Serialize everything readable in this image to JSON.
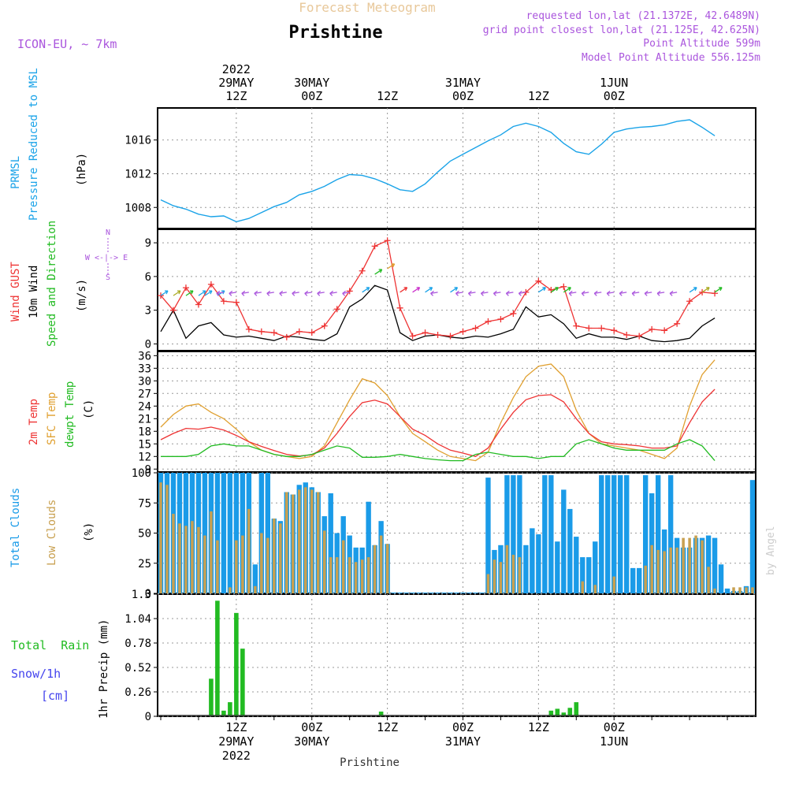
{
  "header": {
    "title_top": "Forecast Meteogram",
    "location": "Prishtine",
    "model": "ICON-EU, ~ 7km",
    "requested": "requested lon,lat (21.1372E, 42.6489N)",
    "grid_point": "grid point closest lon,lat (21.125E, 42.625N)",
    "point_alt": "Point Altitude 599m",
    "model_alt": "Model Point Altitude 556.125m",
    "credit": "by Angel",
    "bottom_location": "Prishtine"
  },
  "colors": {
    "pressure": "#1aa3e8",
    "gust": "#ee3333",
    "wind": "#000000",
    "green": "#22bb22",
    "orange": "#e0a030",
    "purple": "#aa55dd",
    "total_cloud": "#1a9be8",
    "low_cloud": "#c8a050",
    "rain": "#22bb22",
    "snow": "#4444ee"
  },
  "time_axis": {
    "top_labels": [
      {
        "t": 12,
        "lines": [
          "2022",
          "29MAY",
          "12Z"
        ]
      },
      {
        "t": 24,
        "lines": [
          "30MAY",
          "00Z"
        ]
      },
      {
        "t": 36,
        "lines": [
          "12Z"
        ]
      },
      {
        "t": 48,
        "lines": [
          "31MAY",
          "00Z"
        ]
      },
      {
        "t": 60,
        "lines": [
          "12Z"
        ]
      },
      {
        "t": 72,
        "lines": [
          "1JUN",
          "00Z"
        ]
      }
    ],
    "bottom_labels": [
      {
        "t": 12,
        "lines": [
          "12Z",
          "29MAY",
          "2022"
        ]
      },
      {
        "t": 24,
        "lines": [
          "00Z",
          "30MAY"
        ]
      },
      {
        "t": 36,
        "lines": [
          "12Z"
        ]
      },
      {
        "t": 48,
        "lines": [
          "00Z",
          "31MAY"
        ]
      },
      {
        "t": 60,
        "lines": [
          "12Z"
        ]
      },
      {
        "t": 72,
        "lines": [
          "00Z",
          "1JUN"
        ]
      }
    ]
  },
  "panels": {
    "pressure": {
      "label1": "PRMSL",
      "label2": "Pressure Reduced to MSL",
      "unit": "(hPa)",
      "ticks": [
        "1008",
        "1012",
        "1016"
      ]
    },
    "wind": {
      "label_gust": "Wind GUST",
      "label_wind": "10m Wind",
      "label_dir": "Speed and Direction",
      "unit": "(m/s)",
      "ticks": [
        "0",
        "3",
        "6",
        "9"
      ],
      "compass_n": "N",
      "compass_s": "S",
      "compass_row": "W <-|-> E"
    },
    "temp": {
      "label_2m": "2m Temp",
      "label_sfc": "SFC Temp",
      "label_dew": "dewpt Temp",
      "unit": "(C)",
      "ticks": [
        "9",
        "12",
        "15",
        "18",
        "21",
        "24",
        "27",
        "30",
        "33",
        "36"
      ]
    },
    "clouds": {
      "label_total": "Total Clouds",
      "label_low": "Low Clouds",
      "unit": "(%)",
      "ticks": [
        "0",
        "25",
        "50",
        "75",
        "100"
      ]
    },
    "precip": {
      "label_rain": "Total  Rain",
      "label_snow": "Snow/1h",
      "label_cm": "[cm]",
      "unit": "1hr Precip (mm)",
      "ticks": [
        "0",
        "0.26",
        "0.52",
        "0.78",
        "1.04",
        "1.3"
      ]
    }
  },
  "chart_data": [
    {
      "type": "line",
      "title": "PRMSL Pressure Reduced to MSL",
      "ylabel": "hPa",
      "ylim": [
        1005.5,
        1019.8
      ],
      "x": [
        0,
        2,
        4,
        6,
        8,
        10,
        12,
        14,
        16,
        18,
        20,
        22,
        24,
        26,
        28,
        30,
        32,
        34,
        36,
        38,
        40,
        42,
        44,
        46,
        48,
        50,
        52,
        54,
        56,
        58,
        60,
        62,
        64,
        66,
        68,
        70,
        72,
        74,
        76,
        78,
        80,
        82,
        84,
        86,
        88
      ],
      "values": [
        1008.9,
        1008.2,
        1007.8,
        1007.2,
        1006.9,
        1007.0,
        1006.3,
        1006.7,
        1007.4,
        1008.1,
        1008.6,
        1009.5,
        1009.9,
        1010.5,
        1011.3,
        1011.9,
        1011.8,
        1011.4,
        1010.8,
        1010.1,
        1009.9,
        1010.8,
        1012.2,
        1013.5,
        1014.3,
        1015.1,
        1015.9,
        1016.6,
        1017.6,
        1018.0,
        1017.6,
        1016.9,
        1015.6,
        1014.6,
        1014.3,
        1015.5,
        1016.9,
        1017.3,
        1017.5,
        1017.6,
        1017.8,
        1018.2,
        1018.4,
        1017.5,
        1016.5
      ]
    },
    {
      "type": "line",
      "title": "Wind GUST / 10m Wind Speed",
      "ylabel": "m/s",
      "ylim": [
        -0.6,
        10.2
      ],
      "x": [
        0,
        2,
        4,
        6,
        8,
        10,
        12,
        14,
        16,
        18,
        20,
        22,
        24,
        26,
        28,
        30,
        32,
        34,
        36,
        38,
        40,
        42,
        44,
        46,
        48,
        50,
        52,
        54,
        56,
        58,
        60,
        62,
        64,
        66,
        68,
        70,
        72,
        74,
        76,
        78,
        80,
        82,
        84,
        86,
        88
      ],
      "series": [
        {
          "name": "Wind GUST",
          "values": [
            4.3,
            3.0,
            5.0,
            3.5,
            5.3,
            3.8,
            3.7,
            1.3,
            1.1,
            1.0,
            0.6,
            1.1,
            1.0,
            1.6,
            3.1,
            4.7,
            6.5,
            8.7,
            9.2,
            3.2,
            0.7,
            1.0,
            0.8,
            0.7,
            1.1,
            1.4,
            2.0,
            2.2,
            2.7,
            4.6,
            5.6,
            4.8,
            5.1,
            1.6,
            1.4,
            1.4,
            1.2,
            0.8,
            0.7,
            1.3,
            1.2,
            1.8,
            3.8,
            4.6,
            4.5
          ]
        },
        {
          "name": "10m Wind",
          "values": [
            1.1,
            3.0,
            0.5,
            1.6,
            1.9,
            0.8,
            0.6,
            0.7,
            0.5,
            0.3,
            0.7,
            0.6,
            0.4,
            0.3,
            0.9,
            3.3,
            4.0,
            5.2,
            4.8,
            1.0,
            0.3,
            0.7,
            0.8,
            0.6,
            0.5,
            0.7,
            0.6,
            0.9,
            1.3,
            3.3,
            2.4,
            2.6,
            1.8,
            0.5,
            0.9,
            0.6,
            0.6,
            0.4,
            0.7,
            0.3,
            0.2,
            0.3,
            0.5,
            1.6,
            2.3
          ]
        }
      ],
      "arrows": [
        {
          "t": 0,
          "c": "#1aa3e8"
        },
        {
          "t": 2,
          "c": "#aaaa22"
        },
        {
          "t": 4,
          "c": "#22bb22"
        },
        {
          "t": 6,
          "c": "#1aa3e8"
        },
        {
          "t": 7,
          "c": "#1aa3e8"
        },
        {
          "t": 9,
          "c": "#1aa3e8"
        },
        {
          "t": 10,
          "c": "#aa55dd"
        },
        {
          "t": 12,
          "c": "#aa55dd"
        },
        {
          "t": 14,
          "c": "#aa55dd"
        },
        {
          "t": 16,
          "c": "#aa55dd"
        },
        {
          "t": 18,
          "c": "#aa55dd"
        },
        {
          "t": 20,
          "c": "#aa55dd"
        },
        {
          "t": 22,
          "c": "#aa55dd"
        },
        {
          "t": 24,
          "c": "#aa55dd"
        },
        {
          "t": 26,
          "c": "#aa55dd"
        },
        {
          "t": 28,
          "c": "#aa55dd"
        },
        {
          "t": 30,
          "c": "#aa55dd"
        },
        {
          "t": 32,
          "c": "#1aa3e8"
        },
        {
          "t": 34,
          "c": "#22bb22"
        },
        {
          "t": 36,
          "c": "#e0a030"
        },
        {
          "t": 38,
          "c": "#ee3333"
        },
        {
          "t": 40,
          "c": "#cc33cc"
        },
        {
          "t": 42,
          "c": "#1aa3e8"
        },
        {
          "t": 44,
          "c": "#aa55dd"
        },
        {
          "t": 46,
          "c": "#1aa3e8"
        },
        {
          "t": 48,
          "c": "#aa55dd"
        },
        {
          "t": 50,
          "c": "#aa55dd"
        },
        {
          "t": 52,
          "c": "#aa55dd"
        },
        {
          "t": 54,
          "c": "#aa55dd"
        },
        {
          "t": 56,
          "c": "#aa55dd"
        },
        {
          "t": 58,
          "c": "#aa55dd"
        },
        {
          "t": 60,
          "c": "#1aa3e8"
        },
        {
          "t": 62,
          "c": "#22bb22"
        },
        {
          "t": 64,
          "c": "#22bb22"
        },
        {
          "t": 66,
          "c": "#aa55dd"
        },
        {
          "t": 68,
          "c": "#aa55dd"
        },
        {
          "t": 70,
          "c": "#aa55dd"
        },
        {
          "t": 72,
          "c": "#aa55dd"
        },
        {
          "t": 74,
          "c": "#aa55dd"
        },
        {
          "t": 76,
          "c": "#aa55dd"
        },
        {
          "t": 78,
          "c": "#aa55dd"
        },
        {
          "t": 80,
          "c": "#aa55dd"
        },
        {
          "t": 82,
          "c": "#aa55dd"
        },
        {
          "t": 84,
          "c": "#1aa3e8"
        },
        {
          "t": 86,
          "c": "#aaaa22"
        },
        {
          "t": 88,
          "c": "#22bb22"
        }
      ]
    },
    {
      "type": "line",
      "title": "Temperature",
      "ylabel": "C",
      "ylim": [
        8.3,
        37
      ],
      "x": [
        0,
        2,
        4,
        6,
        8,
        10,
        12,
        14,
        16,
        18,
        20,
        22,
        24,
        26,
        28,
        30,
        32,
        34,
        36,
        38,
        40,
        42,
        44,
        46,
        48,
        50,
        52,
        54,
        56,
        58,
        60,
        62,
        64,
        66,
        68,
        70,
        72,
        74,
        76,
        78,
        80,
        82,
        84,
        86,
        88
      ],
      "series": [
        {
          "name": "2m Temp",
          "values": [
            16.0,
            17.5,
            18.7,
            18.5,
            19.0,
            18.3,
            17.0,
            15.5,
            14.4,
            13.4,
            12.5,
            12.1,
            12.4,
            14.0,
            17.5,
            21.5,
            24.8,
            25.4,
            24.5,
            21.5,
            18.5,
            17.0,
            15.0,
            13.5,
            12.8,
            12.0,
            14.0,
            18.5,
            22.5,
            25.5,
            26.5,
            26.7,
            25.0,
            21.0,
            17.5,
            15.5,
            15.0,
            14.8,
            14.5,
            14.0,
            14.0,
            14.5,
            20.0,
            25.0,
            28.0
          ]
        },
        {
          "name": "SFC Temp",
          "values": [
            19.0,
            22.0,
            24.0,
            24.5,
            22.5,
            21.0,
            18.5,
            15.5,
            13.5,
            12.5,
            12.0,
            11.5,
            12.0,
            14.5,
            20.0,
            25.5,
            30.5,
            29.5,
            26.5,
            21.5,
            17.5,
            15.5,
            13.5,
            12.0,
            11.5,
            11.0,
            13.0,
            20.0,
            26.0,
            31.0,
            33.5,
            34.0,
            31.0,
            23.0,
            17.5,
            15.0,
            14.5,
            14.0,
            13.5,
            12.5,
            11.5,
            14.0,
            24.0,
            31.5,
            35.0
          ]
        },
        {
          "name": "dewpt Temp",
          "values": [
            12.0,
            12.0,
            12.0,
            12.5,
            14.5,
            15.0,
            14.5,
            14.5,
            13.5,
            12.5,
            12.0,
            12.0,
            12.5,
            13.5,
            14.5,
            14.0,
            11.8,
            11.8,
            12.0,
            12.5,
            12.0,
            11.5,
            11.2,
            11.0,
            11.0,
            12.5,
            13.0,
            12.5,
            12.0,
            12.0,
            11.5,
            12.0,
            12.0,
            15.0,
            16.0,
            15.0,
            14.0,
            13.5,
            13.5,
            13.5,
            13.5,
            15.0,
            16.0,
            14.5,
            11.0
          ]
        }
      ]
    },
    {
      "type": "bar",
      "title": "Total Clouds / Low Clouds",
      "ylabel": "%",
      "ylim": [
        0,
        100
      ],
      "x_start": 0,
      "x_step": 1,
      "series": [
        {
          "name": "Total Clouds",
          "values": [
            100,
            100,
            100,
            100,
            100,
            100,
            100,
            100,
            100,
            100,
            100,
            100,
            100,
            100,
            100,
            24,
            100,
            100,
            62,
            60,
            84,
            82,
            90,
            92,
            88,
            84,
            64,
            83,
            50,
            64,
            48,
            38,
            38,
            76,
            40,
            60,
            41,
            0,
            0,
            0,
            0,
            0,
            0,
            0,
            0,
            0,
            0,
            0,
            0,
            0,
            0,
            0,
            96,
            36,
            40,
            98,
            98,
            98,
            40,
            54,
            49,
            98,
            98,
            43,
            86,
            70,
            47,
            30,
            30,
            43,
            98,
            98,
            98,
            98,
            98,
            21,
            21,
            98,
            83,
            98,
            53,
            98,
            46,
            38,
            38,
            46,
            46,
            48,
            46,
            24,
            4,
            2,
            2,
            6,
            94
          ]
        },
        {
          "name": "Low Clouds",
          "values": [
            92,
            90,
            66,
            58,
            56,
            60,
            55,
            48,
            68,
            44,
            0,
            5,
            44,
            48,
            70,
            6,
            50,
            46,
            62,
            58,
            84,
            82,
            86,
            88,
            86,
            84,
            52,
            30,
            30,
            44,
            30,
            26,
            28,
            30,
            40,
            48,
            41,
            0,
            0,
            0,
            0,
            0,
            0,
            0,
            0,
            0,
            0,
            0,
            0,
            0,
            0,
            0,
            16,
            28,
            26,
            40,
            32,
            30,
            0,
            0,
            0,
            0,
            0,
            0,
            0,
            0,
            0,
            10,
            0,
            7,
            0,
            0,
            14,
            0,
            0,
            0,
            0,
            23,
            40,
            36,
            35,
            38,
            38,
            46,
            46,
            48,
            44,
            22,
            4,
            0,
            0,
            5,
            5,
            5,
            5
          ]
        }
      ]
    },
    {
      "type": "bar",
      "title": "1hr Precip",
      "ylabel": "mm",
      "ylim": [
        0,
        1.3
      ],
      "x": [
        8,
        9,
        10,
        11,
        12,
        13,
        14,
        35,
        62,
        63,
        64,
        65,
        66
      ],
      "values": [
        0.4,
        1.23,
        0.06,
        0.15,
        1.1,
        0.72,
        0,
        0.05,
        0.06,
        0.08,
        0.04,
        0.09,
        0.15
      ]
    }
  ]
}
